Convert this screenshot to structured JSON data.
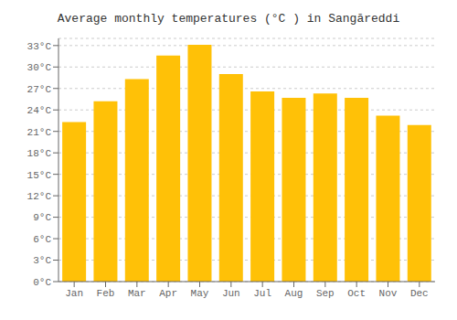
{
  "chart_data": {
    "type": "bar",
    "title": "Average monthly temperatures (°C ) in Sangāreddi",
    "categories": [
      "Jan",
      "Feb",
      "Mar",
      "Apr",
      "May",
      "Jun",
      "Jul",
      "Aug",
      "Sep",
      "Oct",
      "Nov",
      "Dec"
    ],
    "values": [
      22.3,
      25.2,
      28.3,
      31.6,
      33.1,
      29.0,
      26.6,
      25.7,
      26.3,
      25.7,
      23.2,
      21.9
    ],
    "color": "#FFC107",
    "ylim": [
      0,
      34
    ],
    "yticks": [
      {
        "value": 0,
        "label": "0°C"
      },
      {
        "value": 3,
        "label": "3°C"
      },
      {
        "value": 6,
        "label": "6°C"
      },
      {
        "value": 9,
        "label": "9°C"
      },
      {
        "value": 12,
        "label": "12°C"
      },
      {
        "value": 15,
        "label": "15°C"
      },
      {
        "value": 18,
        "label": "18°C"
      },
      {
        "value": 21,
        "label": "21°C"
      },
      {
        "value": 24,
        "label": "24°C"
      },
      {
        "value": 27,
        "label": "27°C"
      },
      {
        "value": 30,
        "label": "30°C"
      },
      {
        "value": 33,
        "label": "33°C"
      }
    ],
    "grid": true
  }
}
